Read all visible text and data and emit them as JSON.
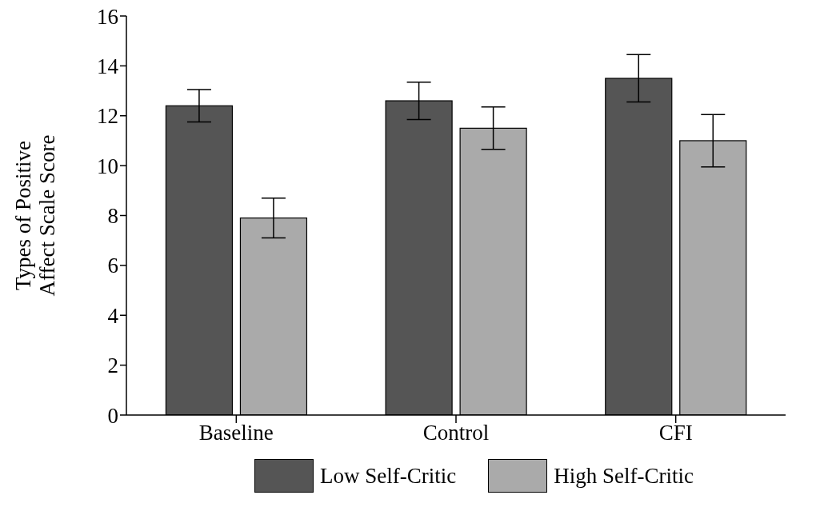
{
  "chart_data": {
    "type": "bar",
    "ylabel": "Types of Positive\nAffect Scale Score",
    "categories": [
      "Baseline",
      "Control",
      "CFI"
    ],
    "series": [
      {
        "name": "Low Self-Critic",
        "color": "#555555",
        "values": [
          12.4,
          12.6,
          13.5
        ],
        "errors": [
          0.65,
          0.75,
          0.95
        ]
      },
      {
        "name": "High Self-Critic",
        "color": "#aaaaaa",
        "values": [
          7.9,
          11.5,
          11.0
        ],
        "errors": [
          0.8,
          0.85,
          1.05
        ]
      }
    ],
    "ylim": [
      0,
      16
    ],
    "yticks": [
      0,
      2,
      4,
      6,
      8,
      10,
      12,
      14,
      16
    ],
    "grid": false,
    "legend": "bottom"
  }
}
